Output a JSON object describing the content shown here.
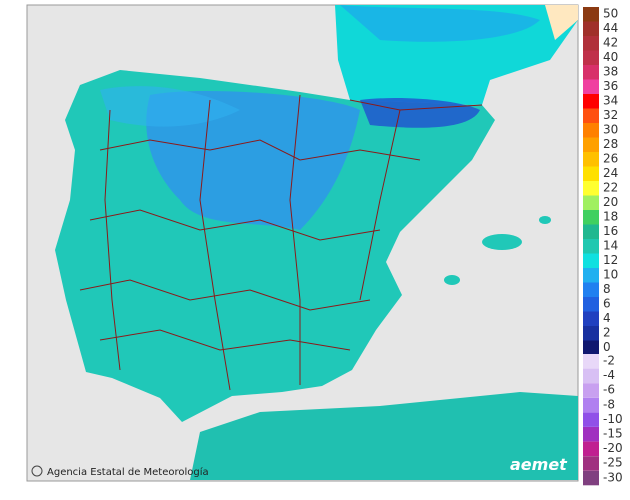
{
  "map": {
    "legend": [
      {
        "label": 50,
        "color": "#8b3a12"
      },
      {
        "label": 44,
        "color": "#a0302a"
      },
      {
        "label": 42,
        "color": "#b0303a"
      },
      {
        "label": 40,
        "color": "#c0304a"
      },
      {
        "label": 38,
        "color": "#d8306a"
      },
      {
        "label": 36,
        "color": "#f040a0"
      },
      {
        "label": 34,
        "color": "#ff0000"
      },
      {
        "label": 32,
        "color": "#ff5010"
      },
      {
        "label": 30,
        "color": "#ff8000"
      },
      {
        "label": 28,
        "color": "#ffa000"
      },
      {
        "label": 26,
        "color": "#ffc000"
      },
      {
        "label": 24,
        "color": "#ffe000"
      },
      {
        "label": 22,
        "color": "#ffff30"
      },
      {
        "label": 20,
        "color": "#a0f060"
      },
      {
        "label": 18,
        "color": "#40d060"
      },
      {
        "label": 16,
        "color": "#20b890"
      },
      {
        "label": 14,
        "color": "#20c8b0"
      },
      {
        "label": 12,
        "color": "#10e0e0"
      },
      {
        "label": 10,
        "color": "#20b0f0"
      },
      {
        "label": 8,
        "color": "#2080f0"
      },
      {
        "label": 6,
        "color": "#2060e0"
      },
      {
        "label": 4,
        "color": "#2040c0"
      },
      {
        "label": 2,
        "color": "#1830a0"
      },
      {
        "label": 0,
        "color": "#101870"
      },
      {
        "label": -2,
        "color": "#e8d8f8"
      },
      {
        "label": -4,
        "color": "#d8c0f4"
      },
      {
        "label": -6,
        "color": "#c8a0f0"
      },
      {
        "label": -8,
        "color": "#b080f0"
      },
      {
        "label": -10,
        "color": "#9050e8"
      },
      {
        "label": -15,
        "color": "#a030c0"
      },
      {
        "label": -20,
        "color": "#c02090"
      },
      {
        "label": -25,
        "color": "#a03080"
      },
      {
        "label": -30,
        "color": "#804080"
      }
    ],
    "attribution": "Agencia Estatal de Meteorología",
    "logo": "aemet"
  }
}
